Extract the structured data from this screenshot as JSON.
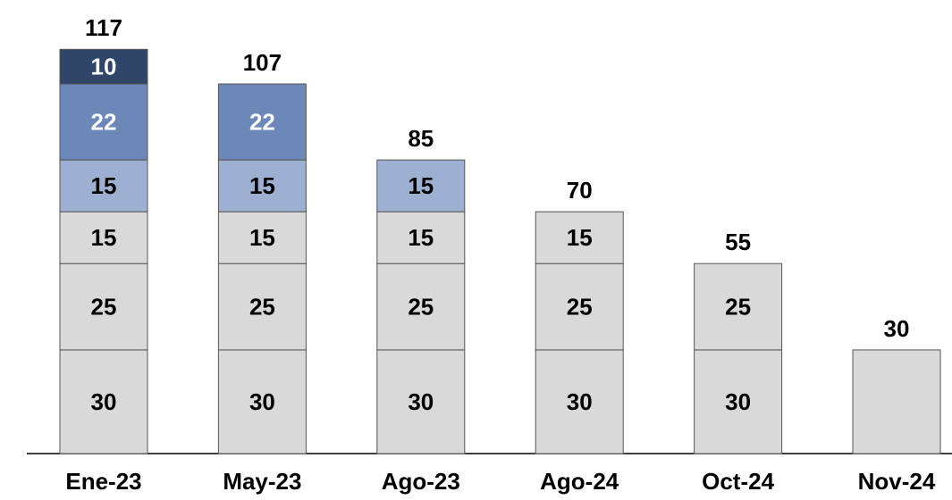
{
  "chart_data": {
    "type": "stacked-bar",
    "categories": [
      "Ene-23",
      "May-23",
      "Ago-23",
      "Ago-24",
      "Oct-24",
      "Nov-24"
    ],
    "series": [
      {
        "color": "#d9d9d9",
        "values": [
          30,
          30,
          30,
          30,
          30,
          30
        ],
        "value_labels": [
          "30",
          "30",
          "30",
          "30",
          "30",
          null
        ]
      },
      {
        "color": "#d9d9d9",
        "values": [
          25,
          25,
          25,
          25,
          25,
          null
        ]
      },
      {
        "color": "#d9d9d9",
        "values": [
          15,
          15,
          15,
          15,
          null,
          null
        ]
      },
      {
        "color": "#9eb0d1",
        "values": [
          15,
          15,
          15,
          null,
          null,
          null
        ]
      },
      {
        "color": "#6c88b9",
        "values": [
          22,
          22,
          null,
          null,
          null,
          null
        ]
      },
      {
        "color": "#2f4669",
        "values": [
          10,
          null,
          null,
          null,
          null,
          null
        ]
      }
    ],
    "totals": [
      117,
      107,
      85,
      70,
      55,
      30
    ],
    "ylim": [
      0,
      130
    ]
  }
}
